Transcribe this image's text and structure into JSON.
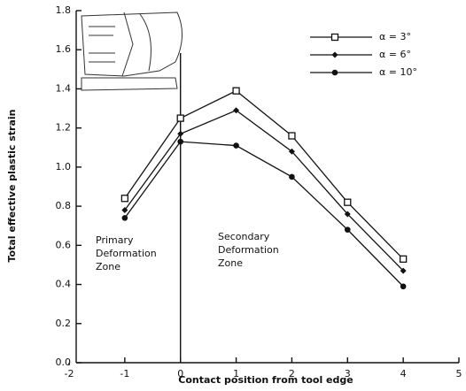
{
  "chart_data": {
    "type": "line",
    "x_label": "Contact position from tool edge",
    "y_label": "Total effective plastic strain",
    "x": [
      -1,
      0,
      1,
      2,
      3,
      4
    ],
    "series": [
      {
        "name": "α = 3°",
        "color": "#111111",
        "marker": "open-square",
        "values": [
          0.84,
          1.25,
          1.39,
          1.16,
          0.82,
          0.53
        ]
      },
      {
        "name": "α = 6°",
        "color": "#111111",
        "marker": "diamond",
        "values": [
          0.78,
          1.17,
          1.29,
          1.08,
          0.76,
          0.47
        ]
      },
      {
        "name": "α = 10°",
        "color": "#111111",
        "marker": "circle",
        "values": [
          0.74,
          1.13,
          1.11,
          0.95,
          0.68,
          0.39
        ]
      }
    ],
    "xlim": [
      -2,
      5
    ],
    "xticks": [
      -2,
      -1,
      0,
      1,
      2,
      3,
      4,
      5
    ],
    "ylim": [
      0,
      1.8
    ],
    "yticks": [
      {
        "value": 0,
        "label": "0.0"
      },
      0.2,
      0.4,
      0.6,
      0.8,
      {
        "value": 1,
        "label": "1.0"
      },
      1.2,
      1.4,
      1.6,
      1.8
    ],
    "divider_x": 0,
    "annotations": [
      [
        "Primary",
        "Deformation",
        "Zone"
      ],
      [
        "Secondary",
        "Deformation",
        "Zone"
      ]
    ],
    "legend": "upper-right"
  }
}
